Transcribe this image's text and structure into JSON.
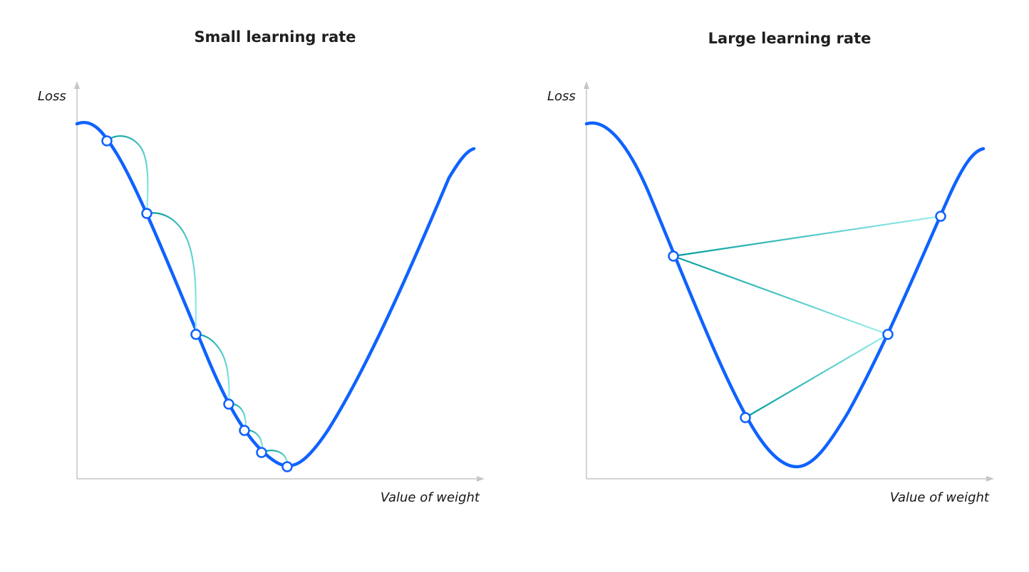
{
  "panels": [
    {
      "title": "Small learning rate",
      "y_axis_label": "Loss",
      "x_axis_label": "Value of weight",
      "step_count": 6
    },
    {
      "title": "Large learning rate",
      "y_axis_label": "Loss",
      "x_axis_label": "Value of weight",
      "step_count": 3
    }
  ],
  "colors": {
    "curve": "#0f62fe",
    "axis": "#c6c6c6",
    "step_dark": "#009d9a",
    "step_light": "#9ef0f0"
  }
}
